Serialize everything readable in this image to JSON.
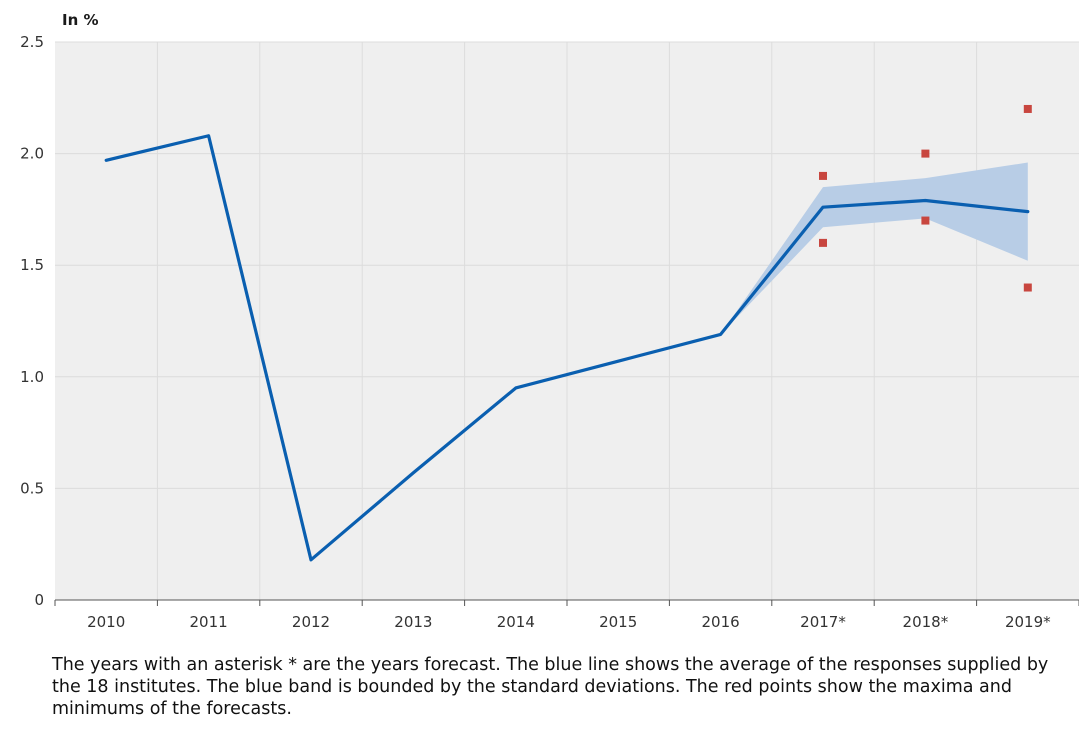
{
  "chart_data": {
    "type": "line",
    "unit_label": "In %",
    "categories": [
      "2010",
      "2011",
      "2012",
      "2013",
      "2014",
      "2015",
      "2016",
      "2017*",
      "2018*",
      "2019*"
    ],
    "y_ticks": [
      "0",
      "0.5",
      "1.0",
      "1.5",
      "2.0",
      "2.5"
    ],
    "ylim": [
      0,
      2.5
    ],
    "grid": true,
    "series": [
      {
        "kind": "line",
        "color": "#0a5fb0",
        "values": [
          1.97,
          2.08,
          0.18,
          0.57,
          0.95,
          1.07,
          1.19,
          1.76,
          1.79,
          1.74
        ]
      }
    ],
    "band": {
      "color": "#b8cde6",
      "lower": [
        null,
        null,
        null,
        null,
        null,
        null,
        1.19,
        1.67,
        1.71,
        1.52
      ],
      "upper": [
        null,
        null,
        null,
        null,
        null,
        null,
        1.19,
        1.85,
        1.89,
        1.96
      ]
    },
    "points": {
      "color": "#c8463f",
      "max": [
        null,
        null,
        null,
        null,
        null,
        null,
        null,
        1.9,
        2.0,
        2.2
      ],
      "min": [
        null,
        null,
        null,
        null,
        null,
        null,
        null,
        1.6,
        1.7,
        1.4
      ]
    }
  },
  "caption": "The years with an asterisk * are the years forecast. The blue line shows the average of the responses supplied by the 18 institutes. The blue band is bounded by the standard deviations. The red points show the maxima and minimums of the forecasts."
}
